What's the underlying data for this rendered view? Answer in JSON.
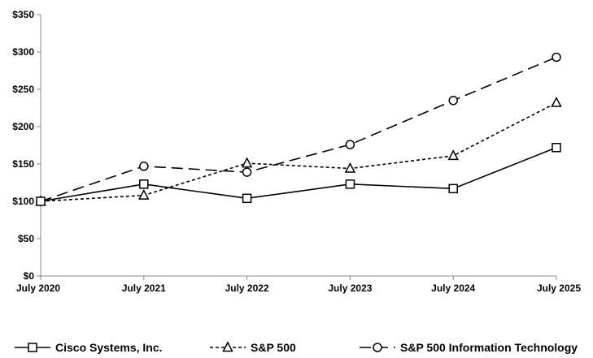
{
  "chart_data": {
    "type": "line",
    "categories": [
      "July 2020",
      "July 2021",
      "July 2022",
      "July 2023",
      "July 2024",
      "July 2025"
    ],
    "y_ticks": [
      "$0",
      "$50",
      "$100",
      "$150",
      "$200",
      "$250",
      "$300",
      "$350"
    ],
    "ylim": [
      0,
      350
    ],
    "grid": false,
    "legend_position": "bottom",
    "series": [
      {
        "name": "Cisco Systems, Inc.",
        "marker": "square",
        "dash": "solid",
        "values": [
          100,
          123,
          104,
          123,
          117,
          172
        ]
      },
      {
        "name": "S&P 500",
        "marker": "triangle",
        "dash": "dotted",
        "values": [
          100,
          108,
          151,
          144,
          161,
          232
        ]
      },
      {
        "name": "S&P 500 Information Technology",
        "marker": "circle",
        "dash": "dashed",
        "values": [
          100,
          147,
          139,
          176,
          235,
          293
        ]
      }
    ]
  }
}
